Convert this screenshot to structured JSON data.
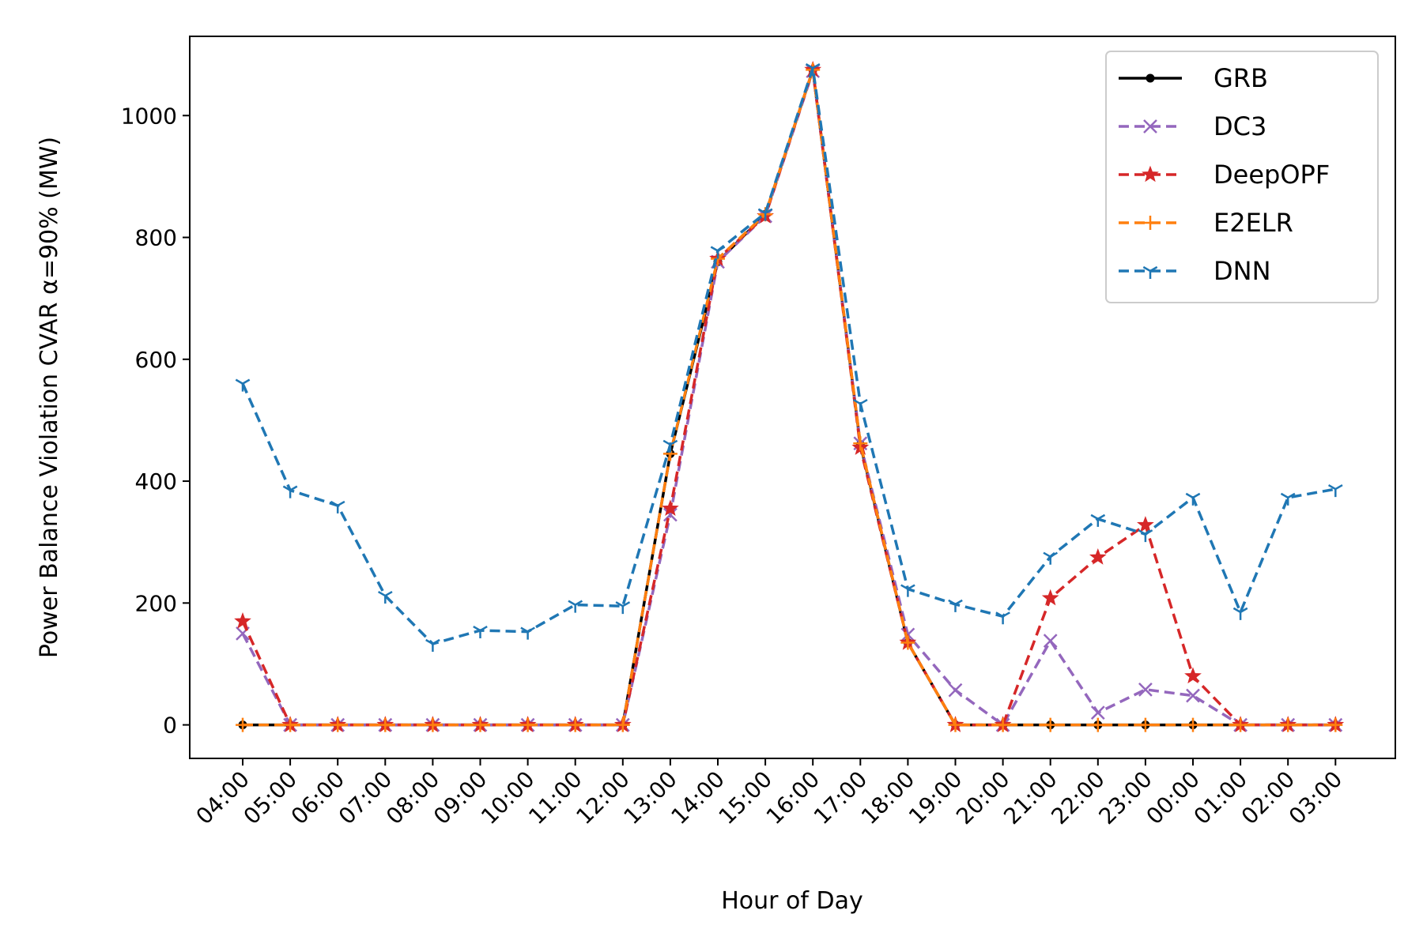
{
  "chart_data": {
    "type": "line",
    "xlabel": "Hour of Day",
    "ylabel": "Power Balance Violation CVAR α=90% (MW)",
    "categories": [
      "04:00",
      "05:00",
      "06:00",
      "07:00",
      "08:00",
      "09:00",
      "10:00",
      "11:00",
      "12:00",
      "13:00",
      "14:00",
      "15:00",
      "16:00",
      "17:00",
      "18:00",
      "19:00",
      "20:00",
      "21:00",
      "22:00",
      "23:00",
      "00:00",
      "01:00",
      "02:00",
      "03:00"
    ],
    "ylim": [
      -55,
      1130
    ],
    "yticks": [
      0,
      200,
      400,
      600,
      800,
      1000
    ],
    "grid": false,
    "legend_position": "top-right",
    "series": [
      {
        "name": "GRB",
        "color": "#000000",
        "dash": "solid",
        "marker": "dot",
        "values": [
          0,
          0,
          0,
          0,
          0,
          0,
          0,
          0,
          0,
          445,
          760,
          838,
          1075,
          460,
          135,
          0,
          0,
          0,
          0,
          0,
          0,
          0,
          0,
          0
        ]
      },
      {
        "name": "DC3",
        "color": "#9467bd",
        "dash": "dashed",
        "marker": "x",
        "values": [
          150,
          0,
          0,
          0,
          0,
          0,
          0,
          0,
          0,
          345,
          760,
          835,
          1073,
          462,
          148,
          57,
          0,
          138,
          20,
          58,
          48,
          0,
          0,
          0
        ]
      },
      {
        "name": "DeepOPF",
        "color": "#d62728",
        "dash": "dashed",
        "marker": "star",
        "values": [
          170,
          0,
          0,
          0,
          0,
          0,
          0,
          0,
          0,
          355,
          765,
          835,
          1075,
          455,
          135,
          0,
          0,
          208,
          275,
          328,
          80,
          0,
          0,
          0
        ]
      },
      {
        "name": "E2ELR",
        "color": "#ff7f0e",
        "dash": "dashed",
        "marker": "plus",
        "values": [
          0,
          0,
          0,
          0,
          0,
          0,
          0,
          0,
          0,
          445,
          765,
          838,
          1075,
          462,
          135,
          0,
          0,
          0,
          0,
          0,
          0,
          0,
          0,
          0
        ]
      },
      {
        "name": "DNN",
        "color": "#1f77b4",
        "dash": "dashed",
        "marker": "tri",
        "values": [
          560,
          385,
          360,
          212,
          133,
          155,
          153,
          197,
          195,
          460,
          778,
          840,
          1078,
          527,
          223,
          198,
          178,
          276,
          338,
          313,
          373,
          185,
          373,
          387
        ]
      }
    ]
  }
}
